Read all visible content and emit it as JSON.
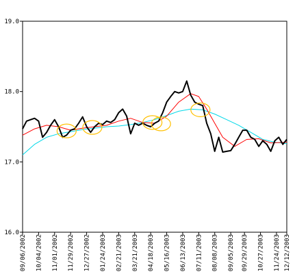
{
  "chart_data": {
    "type": "line",
    "title": "",
    "xlabel": "",
    "ylabel": "",
    "ylim": [
      16.0,
      19.0
    ],
    "y_ticks": [
      16.0,
      17.0,
      18.0,
      19.0
    ],
    "y_tick_labels": [
      "16.0",
      "17.0",
      "18.0",
      "19.0"
    ],
    "x_range": [
      "2002-09-06",
      "2003-12-12"
    ],
    "x_tick_labels": [
      "09/06/2002",
      "10/04/2002",
      "11/01/2002",
      "11/29/2002",
      "12/27/2002",
      "01/24/2003",
      "02/21/2003",
      "03/21/2003",
      "04/18/2003",
      "05/16/2003",
      "06/13/2003",
      "07/11/2003",
      "08/08/2003",
      "09/05/2003",
      "09/29/2003",
      "10/27/2003",
      "11/24/2003",
      "12/12/2003"
    ],
    "x_tick_dates": [
      "2002-09-06",
      "2002-10-04",
      "2002-11-01",
      "2002-11-29",
      "2002-12-27",
      "2003-01-24",
      "2003-02-21",
      "2003-03-21",
      "2003-04-18",
      "2003-05-16",
      "2003-06-13",
      "2003-07-11",
      "2003-08-08",
      "2003-09-05",
      "2003-09-29",
      "2003-10-27",
      "2003-11-24",
      "2003-12-12"
    ],
    "grid": false,
    "legend": "none",
    "series": [
      {
        "color": "#000000",
        "points": [
          [
            "2002-09-06",
            17.47
          ],
          [
            "2002-09-13",
            17.58
          ],
          [
            "2002-09-20",
            17.6
          ],
          [
            "2002-09-27",
            17.62
          ],
          [
            "2002-10-04",
            17.58
          ],
          [
            "2002-10-11",
            17.35
          ],
          [
            "2002-10-18",
            17.42
          ],
          [
            "2002-10-25",
            17.52
          ],
          [
            "2002-11-01",
            17.6
          ],
          [
            "2002-11-08",
            17.5
          ],
          [
            "2002-11-15",
            17.35
          ],
          [
            "2002-11-22",
            17.38
          ],
          [
            "2002-11-29",
            17.45
          ],
          [
            "2002-12-06",
            17.47
          ],
          [
            "2002-12-13",
            17.55
          ],
          [
            "2002-12-20",
            17.64
          ],
          [
            "2002-12-27",
            17.5
          ],
          [
            "2003-01-03",
            17.42
          ],
          [
            "2003-01-10",
            17.5
          ],
          [
            "2003-01-17",
            17.55
          ],
          [
            "2003-01-24",
            17.53
          ],
          [
            "2003-01-31",
            17.58
          ],
          [
            "2003-02-07",
            17.56
          ],
          [
            "2003-02-14",
            17.6
          ],
          [
            "2003-02-21",
            17.7
          ],
          [
            "2003-02-28",
            17.75
          ],
          [
            "2003-03-07",
            17.65
          ],
          [
            "2003-03-14",
            17.4
          ],
          [
            "2003-03-21",
            17.55
          ],
          [
            "2003-03-28",
            17.52
          ],
          [
            "2003-04-04",
            17.55
          ],
          [
            "2003-04-11",
            17.52
          ],
          [
            "2003-04-18",
            17.5
          ],
          [
            "2003-04-25",
            17.55
          ],
          [
            "2003-05-02",
            17.58
          ],
          [
            "2003-05-09",
            17.7
          ],
          [
            "2003-05-16",
            17.85
          ],
          [
            "2003-05-23",
            17.93
          ],
          [
            "2003-05-30",
            18.0
          ],
          [
            "2003-06-06",
            17.98
          ],
          [
            "2003-06-13",
            18.0
          ],
          [
            "2003-06-20",
            18.15
          ],
          [
            "2003-06-27",
            17.95
          ],
          [
            "2003-07-04",
            17.85
          ],
          [
            "2003-07-11",
            17.82
          ],
          [
            "2003-07-18",
            17.8
          ],
          [
            "2003-07-25",
            17.55
          ],
          [
            "2003-08-01",
            17.4
          ],
          [
            "2003-08-08",
            17.15
          ],
          [
            "2003-08-15",
            17.35
          ],
          [
            "2003-08-22",
            17.14
          ],
          [
            "2003-08-29",
            17.15
          ],
          [
            "2003-09-05",
            17.16
          ],
          [
            "2003-09-12",
            17.25
          ],
          [
            "2003-09-19",
            17.35
          ],
          [
            "2003-09-26",
            17.45
          ],
          [
            "2003-10-03",
            17.45
          ],
          [
            "2003-10-10",
            17.35
          ],
          [
            "2003-10-17",
            17.32
          ],
          [
            "2003-10-24",
            17.22
          ],
          [
            "2003-10-31",
            17.3
          ],
          [
            "2003-11-07",
            17.25
          ],
          [
            "2003-11-14",
            17.15
          ],
          [
            "2003-11-21",
            17.3
          ],
          [
            "2003-11-28",
            17.35
          ],
          [
            "2003-12-05",
            17.25
          ],
          [
            "2003-12-12",
            17.32
          ]
        ]
      },
      {
        "color": "#ff0000",
        "points": [
          [
            "2002-09-06",
            17.38
          ],
          [
            "2002-09-27",
            17.47
          ],
          [
            "2002-10-18",
            17.52
          ],
          [
            "2002-11-08",
            17.5
          ],
          [
            "2002-11-29",
            17.45
          ],
          [
            "2002-12-20",
            17.48
          ],
          [
            "2003-01-10",
            17.5
          ],
          [
            "2003-01-31",
            17.52
          ],
          [
            "2003-02-21",
            17.58
          ],
          [
            "2003-03-14",
            17.62
          ],
          [
            "2003-04-04",
            17.56
          ],
          [
            "2003-04-25",
            17.55
          ],
          [
            "2003-05-16",
            17.65
          ],
          [
            "2003-06-06",
            17.85
          ],
          [
            "2003-06-27",
            17.97
          ],
          [
            "2003-07-11",
            17.93
          ],
          [
            "2003-07-25",
            17.75
          ],
          [
            "2003-08-08",
            17.55
          ],
          [
            "2003-08-22",
            17.35
          ],
          [
            "2003-09-12",
            17.22
          ],
          [
            "2003-10-03",
            17.32
          ],
          [
            "2003-10-24",
            17.33
          ],
          [
            "2003-11-14",
            17.27
          ],
          [
            "2003-12-12",
            17.28
          ]
        ]
      },
      {
        "color": "#00d8e8",
        "points": [
          [
            "2002-09-06",
            17.1
          ],
          [
            "2002-09-27",
            17.25
          ],
          [
            "2002-10-18",
            17.35
          ],
          [
            "2002-11-08",
            17.4
          ],
          [
            "2002-11-29",
            17.43
          ],
          [
            "2002-12-20",
            17.46
          ],
          [
            "2003-01-10",
            17.48
          ],
          [
            "2003-01-31",
            17.5
          ],
          [
            "2003-02-21",
            17.51
          ],
          [
            "2003-03-14",
            17.53
          ],
          [
            "2003-04-04",
            17.56
          ],
          [
            "2003-04-25",
            17.6
          ],
          [
            "2003-05-16",
            17.66
          ],
          [
            "2003-06-06",
            17.72
          ],
          [
            "2003-06-27",
            17.75
          ],
          [
            "2003-07-18",
            17.74
          ],
          [
            "2003-08-08",
            17.68
          ],
          [
            "2003-08-29",
            17.6
          ],
          [
            "2003-09-19",
            17.52
          ],
          [
            "2003-10-10",
            17.42
          ],
          [
            "2003-10-31",
            17.32
          ],
          [
            "2003-11-21",
            17.28
          ],
          [
            "2003-12-12",
            17.26
          ]
        ]
      }
    ],
    "markers": {
      "color": "#ffc000",
      "shape": "ellipse",
      "points": [
        [
          "2002-11-22",
          17.44
        ],
        [
          "2003-01-06",
          17.49
        ],
        [
          "2003-04-21",
          17.56
        ],
        [
          "2003-05-06",
          17.54
        ],
        [
          "2003-07-14",
          17.74
        ]
      ]
    }
  }
}
